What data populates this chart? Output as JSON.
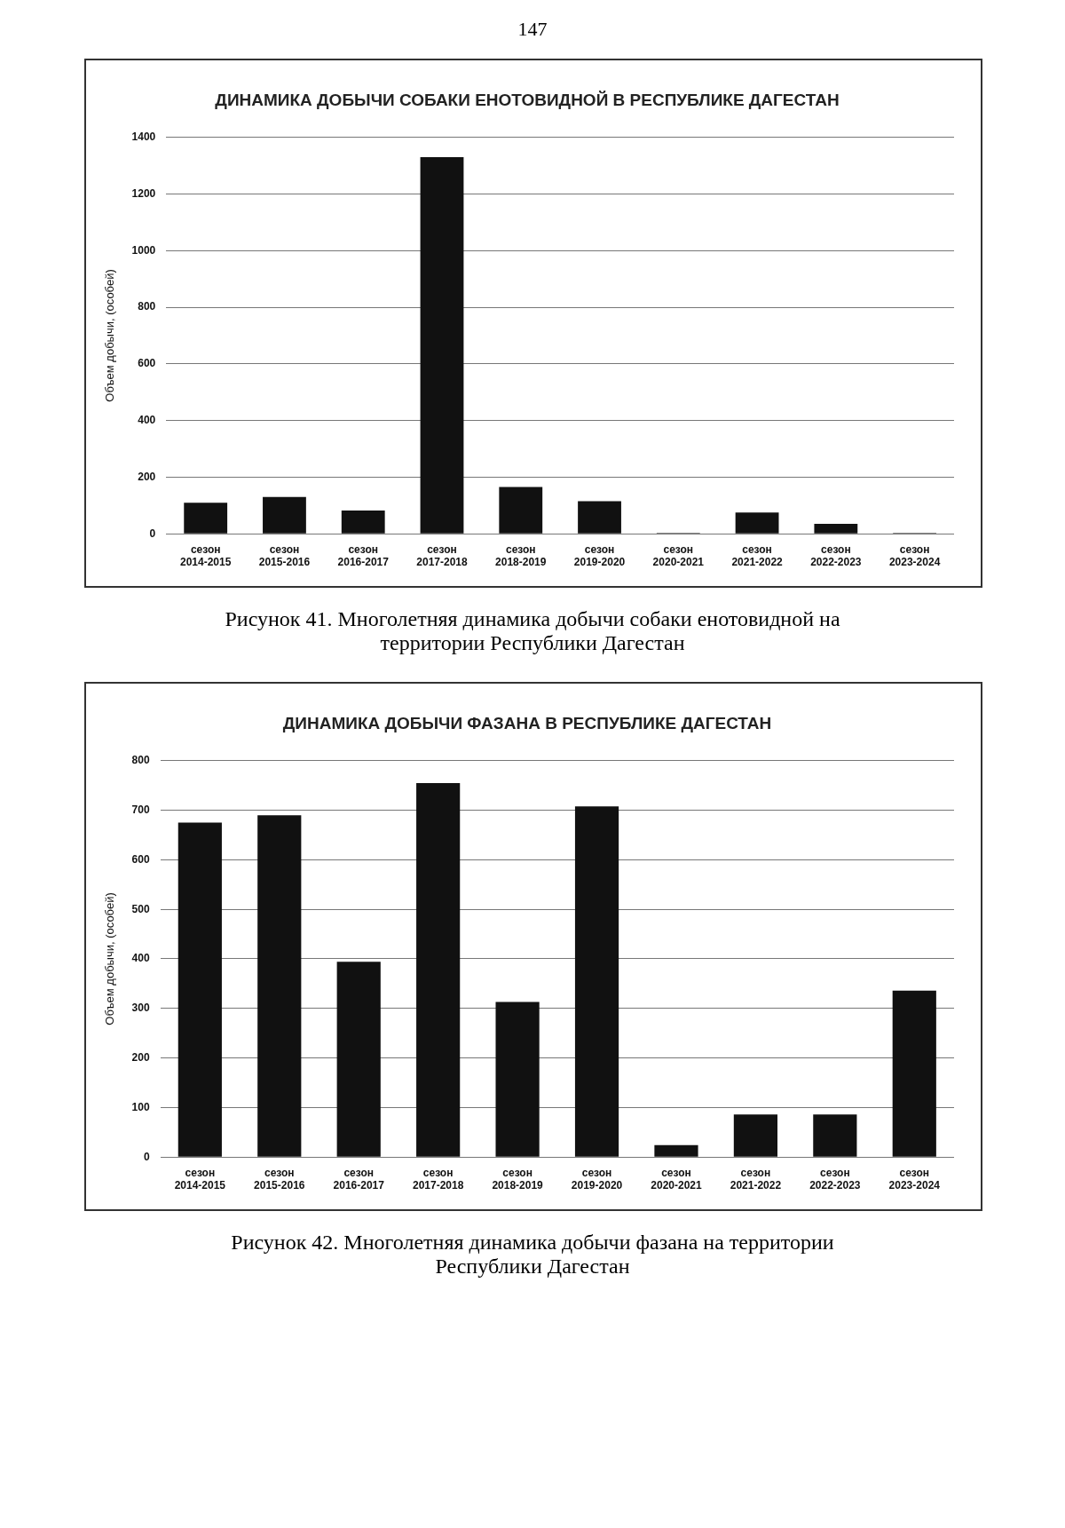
{
  "chart_data": [
    {
      "type": "bar",
      "title": "ДИНАМИКА ДОБЫЧИ СОБАКИ ЕНОТОВИДНОЙ В РЕСПУБЛИКЕ ДАГЕСТАН",
      "ylabel": "Объем добычи, (особей)",
      "categories": [
        "сезон 2014-2015",
        "сезон 2015-2016",
        "сезон 2016-2017",
        "сезон 2017-2018",
        "сезон 2018-2019",
        "сезон 2019-2020",
        "сезон 2020-2021",
        "сезон 2021-2022",
        "сезон 2022-2023",
        "сезон 2023-2024"
      ],
      "values": [
        110,
        130,
        82,
        1330,
        165,
        115,
        3,
        75,
        35,
        3
      ],
      "color": "#111111",
      "ylim": [
        0,
        1400
      ],
      "yticks": [
        0,
        200,
        400,
        600,
        800,
        1000,
        1200,
        1400
      ],
      "grid": "y",
      "legend": false,
      "annotations": [
        "147",
        "Рисунок 41. Многолетняя динамика добычи собаки енотовидной на территории Республики Дагестан"
      ]
    },
    {
      "type": "bar",
      "title": "ДИНАМИКА ДОБЫЧИ ФАЗАНА В РЕСПУБЛИКЕ ДАГЕСТАН",
      "ylabel": "Объем добычи, (особей)",
      "categories": [
        "сезон 2014-2015",
        "сезон 2015-2016",
        "сезон 2016-2017",
        "сезон 2017-2018",
        "сезон 2018-2019",
        "сезон 2019-2020",
        "сезон 2020-2021",
        "сезон 2021-2022",
        "сезон 2022-2023",
        "сезон 2023-2024"
      ],
      "values": [
        675,
        690,
        394,
        755,
        313,
        708,
        24,
        86,
        86,
        336
      ],
      "color": "#111111",
      "ylim": [
        0,
        800
      ],
      "yticks": [
        0,
        100,
        200,
        300,
        400,
        500,
        600,
        700,
        800
      ],
      "grid": "y",
      "legend": false,
      "annotations": [
        "Рисунок 42. Многолетняя динамика добычи фазана на территории Республики Дагестан"
      ]
    }
  ]
}
